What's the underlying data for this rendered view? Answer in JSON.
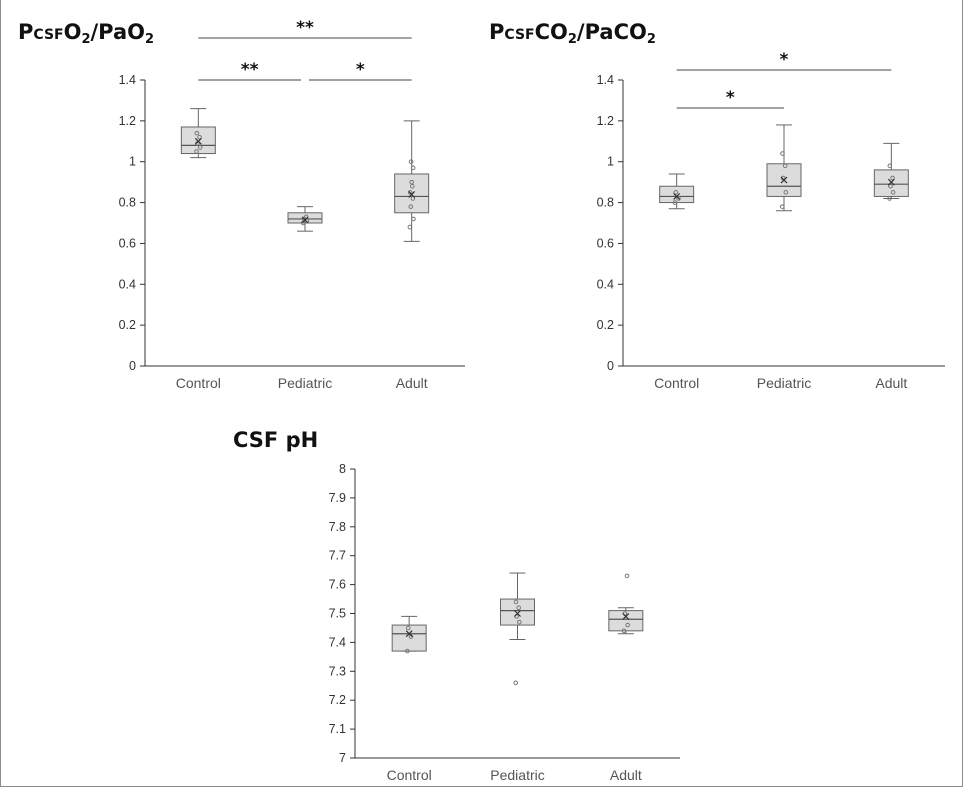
{
  "chart_data": [
    {
      "type": "boxplot",
      "title": {
        "main": "P",
        "sub1": "CSF",
        "mid": "O",
        "sub2": "2",
        "tail": "/PaO",
        "sub3": "2"
      },
      "categories": [
        "Control",
        "Pediatric",
        "Adult"
      ],
      "ylim": [
        0,
        1.4
      ],
      "yticks": [
        "0",
        "0.2",
        "0.4",
        "0.6",
        "0.8",
        "1",
        "1.2",
        "1.4"
      ],
      "boxes": [
        {
          "category": "Control",
          "min": 1.02,
          "q1": 1.04,
          "median": 1.08,
          "q3": 1.17,
          "max": 1.26,
          "mean": 1.1,
          "points": [
            1.05,
            1.07,
            1.09,
            1.12,
            1.14
          ]
        },
        {
          "category": "Pediatric",
          "min": 0.66,
          "q1": 0.7,
          "median": 0.72,
          "q3": 0.75,
          "max": 0.78,
          "mean": 0.715,
          "points": [
            0.7,
            0.71,
            0.72,
            0.73
          ]
        },
        {
          "category": "Adult",
          "min": 0.61,
          "q1": 0.75,
          "median": 0.83,
          "q3": 0.94,
          "max": 1.2,
          "mean": 0.84,
          "points": [
            0.68,
            0.72,
            0.78,
            0.82,
            0.85,
            0.88,
            0.9,
            0.97,
            1.0
          ]
        }
      ],
      "significance": [
        {
          "from": "Control",
          "to": "Adult",
          "label": "**"
        },
        {
          "from": "Control",
          "to": "Pediatric",
          "label": "**"
        },
        {
          "from": "Pediatric",
          "to": "Adult",
          "label": "*"
        }
      ]
    },
    {
      "type": "boxplot",
      "title": {
        "main": "P",
        "sub1": "CSF",
        "mid": "CO",
        "sub2": "2",
        "tail": "/PaCO",
        "sub3": "2"
      },
      "categories": [
        "Control",
        "Pediatric",
        "Adult"
      ],
      "ylim": [
        0,
        1.4
      ],
      "yticks": [
        "0",
        "0.2",
        "0.4",
        "0.6",
        "0.8",
        "1",
        "1.2",
        "1.4"
      ],
      "boxes": [
        {
          "category": "Control",
          "min": 0.77,
          "q1": 0.8,
          "median": 0.83,
          "q3": 0.88,
          "max": 0.94,
          "mean": 0.83,
          "points": [
            0.8,
            0.82,
            0.85
          ]
        },
        {
          "category": "Pediatric",
          "min": 0.76,
          "q1": 0.83,
          "median": 0.88,
          "q3": 0.99,
          "max": 1.18,
          "mean": 0.91,
          "points": [
            0.78,
            0.85,
            0.92,
            0.98,
            1.04
          ]
        },
        {
          "category": "Adult",
          "min": 0.82,
          "q1": 0.83,
          "median": 0.89,
          "q3": 0.96,
          "max": 1.09,
          "mean": 0.9,
          "points": [
            0.82,
            0.85,
            0.88,
            0.92,
            0.98
          ]
        }
      ],
      "significance": [
        {
          "from": "Control",
          "to": "Adult",
          "label": "*"
        },
        {
          "from": "Control",
          "to": "Pediatric",
          "label": "*"
        }
      ]
    },
    {
      "type": "boxplot",
      "title": {
        "main": "CSF pH"
      },
      "categories": [
        "Control",
        "Pediatric",
        "Adult"
      ],
      "ylim": [
        7,
        8
      ],
      "yticks": [
        "7",
        "7.1",
        "7.2",
        "7.3",
        "7.4",
        "7.5",
        "7.6",
        "7.7",
        "7.8",
        "7.9",
        "8"
      ],
      "boxes": [
        {
          "category": "Control",
          "min": 7.37,
          "q1": 7.37,
          "median": 7.43,
          "q3": 7.46,
          "max": 7.49,
          "mean": 7.43,
          "points": [
            7.37,
            7.42,
            7.45
          ]
        },
        {
          "category": "Pediatric",
          "min": 7.41,
          "q1": 7.46,
          "median": 7.51,
          "q3": 7.55,
          "max": 7.64,
          "mean": 7.5,
          "points": [
            7.26,
            7.47,
            7.49,
            7.52,
            7.54
          ]
        },
        {
          "category": "Adult",
          "min": 7.43,
          "q1": 7.44,
          "median": 7.48,
          "q3": 7.51,
          "max": 7.52,
          "mean": 7.49,
          "points": [
            7.44,
            7.46,
            7.5,
            7.63
          ]
        }
      ],
      "significance": []
    }
  ]
}
